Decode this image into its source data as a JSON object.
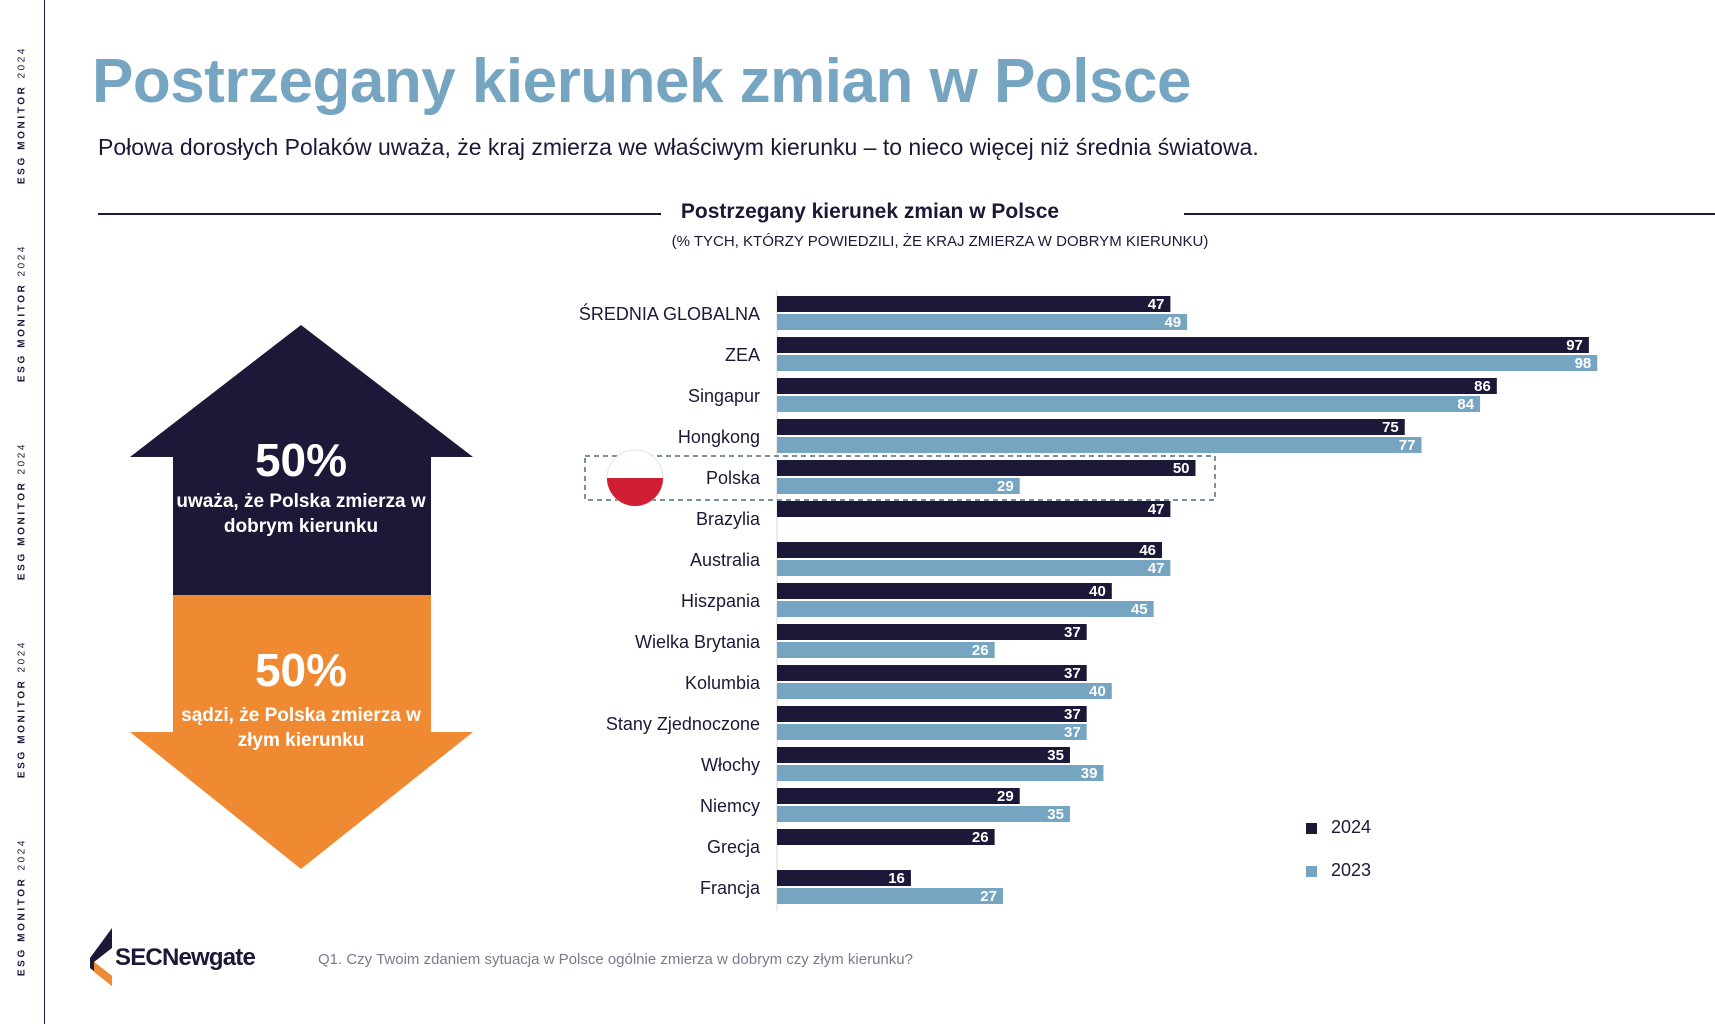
{
  "sidebar": {
    "label": "ESG MONITOR",
    "year": "2024"
  },
  "title": "Postrzegany kierunek zmian w Polsce",
  "subtitle": "Połowa dorosłych Polaków uważa, że kraj zmierza we właściwym kierunku – to nieco więcej niż średnia światowa.",
  "infographic": {
    "up_arrow": {
      "percent": "50%",
      "text": "uważa, że Polska zmierza w dobrym kierunku",
      "color": "#1b1838"
    },
    "down_arrow": {
      "percent": "50%",
      "text": "sądzi, że Polska zmierza w złym kierunku",
      "color": "#ef8a32"
    }
  },
  "footer": {
    "question": "Q1. Czy Twoim zdaniem sytuacja w Polsce ogólnie zmierza w dobrym czy złym kierunku?",
    "logo": "SECNewgate"
  },
  "chart_data": {
    "type": "bar",
    "orientation": "horizontal",
    "title": "Postrzegany kierunek zmian w Polsce",
    "subtitle": "(% TYCH, KTÓRZY POWIEDZILI, ŻE KRAJ ZMIERZA W DOBRYM KIERUNKU)",
    "categories": [
      "ŚREDNIA GLOBALNA",
      "ZEA",
      "Singapur",
      "Hongkong",
      "Polska",
      "Brazylia",
      "Australia",
      "Hiszpania",
      "Wielka Brytania",
      "Kolumbia",
      "Stany Zjednoczone",
      "Włochy",
      "Niemcy",
      "Grecja",
      "Francja"
    ],
    "series": [
      {
        "name": "2024",
        "color": "#1b1838",
        "values": [
          47,
          97,
          86,
          75,
          50,
          47,
          46,
          40,
          37,
          37,
          37,
          35,
          29,
          26,
          16
        ]
      },
      {
        "name": "2023",
        "color": "#76a5c2",
        "values": [
          49,
          98,
          84,
          77,
          29,
          null,
          47,
          45,
          26,
          40,
          37,
          39,
          35,
          null,
          27
        ]
      }
    ],
    "highlight": "Polska",
    "xlim": [
      0,
      100
    ],
    "grid": false,
    "legend_position": "bottom-right"
  }
}
